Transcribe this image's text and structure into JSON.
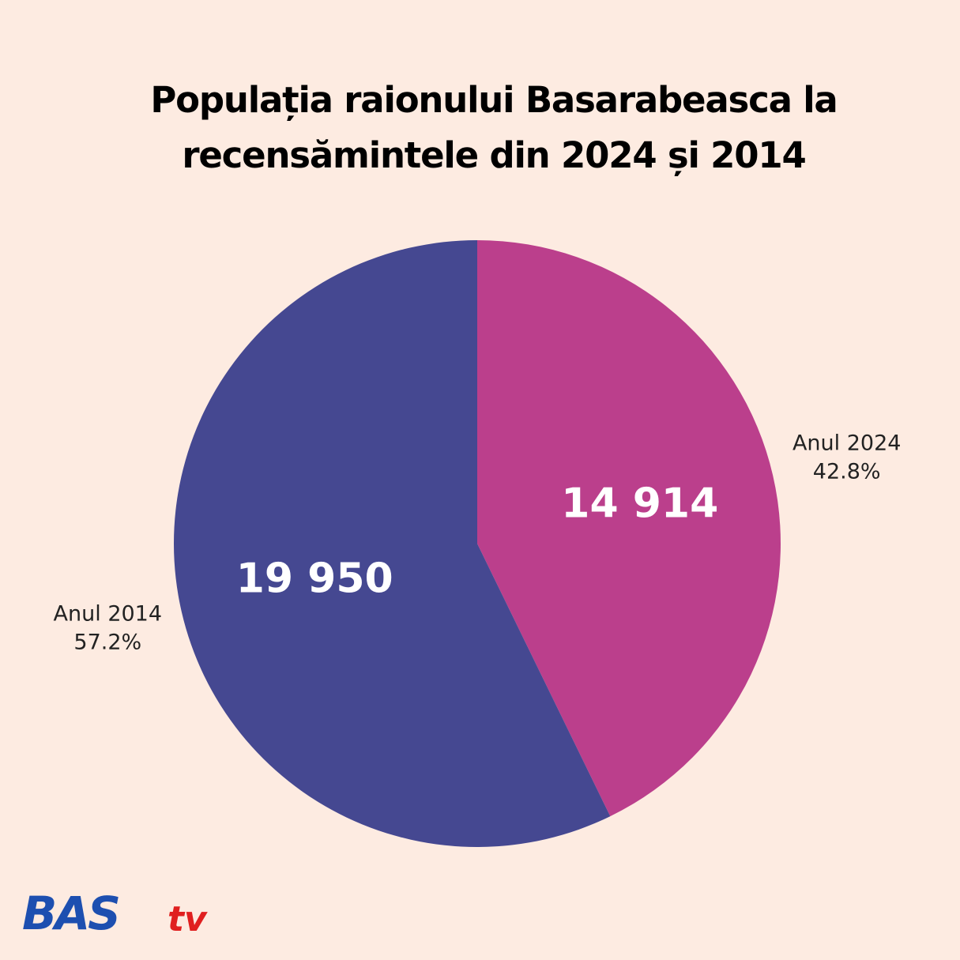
{
  "chart_data": {
    "type": "pie",
    "title": [
      "Populația raionului Basarabeasca la",
      "recensămintele din 2024 și 2014"
    ],
    "categories": [
      "Anul 2024",
      "Anul 2014"
    ],
    "values": [
      14914,
      19950
    ],
    "value_labels": [
      "14 914",
      "19 950"
    ],
    "percent_labels": [
      "42.8%",
      "57.2%"
    ],
    "colors": [
      "#bb3f8c",
      "#454891"
    ],
    "start_angle": 0,
    "direction": "clockwise"
  },
  "logo": {
    "main": "BAS",
    "suffix": "tv"
  }
}
